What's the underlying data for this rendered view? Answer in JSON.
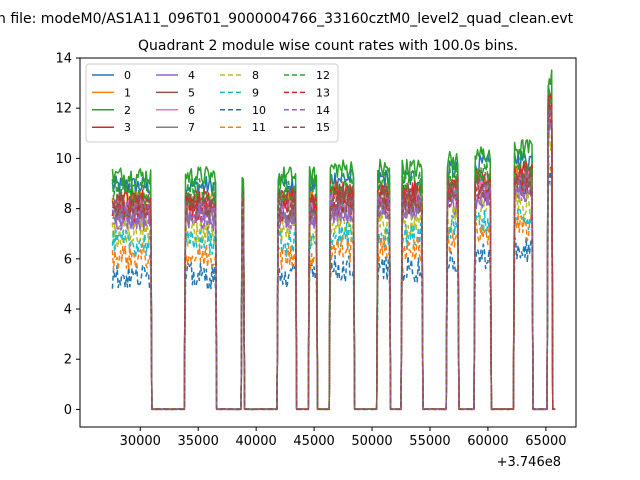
{
  "figure": {
    "suptitle": "n file: modeM0/AS1A11_096T01_9000004766_33160cztM0_level2_quad_clean.evt",
    "offset_label": "+3.746e8"
  },
  "chart_data": {
    "type": "line",
    "title": "Quadrant 2 module wise count rates with 100.0s bins.",
    "xlabel": "",
    "ylabel": "",
    "xlim": [
      24800,
      67600
    ],
    "ylim": [
      -0.7,
      14
    ],
    "x_offset": 374600000,
    "grid": false,
    "legend_position": "upper-left",
    "x_ticks": [
      30000,
      35000,
      40000,
      45000,
      50000,
      55000,
      60000,
      65000
    ],
    "x_tick_labels": [
      "30000",
      "35000",
      "40000",
      "45000",
      "50000",
      "55000",
      "60000",
      "65000"
    ],
    "y_ticks": [
      0,
      2,
      4,
      6,
      8,
      10,
      12,
      14
    ],
    "y_tick_labels": [
      "0",
      "2",
      "4",
      "6",
      "8",
      "10",
      "12",
      "14"
    ],
    "on_intervals": [
      [
        27600,
        30900
      ],
      [
        33900,
        36500
      ],
      [
        38800,
        38900
      ],
      [
        41900,
        43400
      ],
      [
        44600,
        45200
      ],
      [
        46400,
        48400
      ],
      [
        50500,
        51500
      ],
      [
        52600,
        54300
      ],
      [
        56500,
        57400
      ],
      [
        58900,
        60200
      ],
      [
        62300,
        63800
      ],
      [
        65200,
        65500
      ]
    ],
    "series": [
      {
        "name": "0",
        "color": "#1f77b4",
        "dash": "solid",
        "level": 8.9
      },
      {
        "name": "1",
        "color": "#ff7f0e",
        "dash": "solid",
        "level": 8.3
      },
      {
        "name": "2",
        "color": "#2ca02c",
        "dash": "solid",
        "level": 9.3
      },
      {
        "name": "3",
        "color": "#d62728",
        "dash": "solid",
        "level": 8.4
      },
      {
        "name": "4",
        "color": "#9467bd",
        "dash": "solid",
        "level": 7.5
      },
      {
        "name": "5",
        "color": "#8c564b",
        "dash": "solid",
        "level": 8.2
      },
      {
        "name": "6",
        "color": "#e377c2",
        "dash": "solid",
        "level": 8.0
      },
      {
        "name": "7",
        "color": "#7f7f7f",
        "dash": "solid",
        "level": 7.8
      },
      {
        "name": "8",
        "color": "#bcbd22",
        "dash": "dashed",
        "level": 7.0
      },
      {
        "name": "9",
        "color": "#17becf",
        "dash": "dashed",
        "level": 6.6
      },
      {
        "name": "10",
        "color": "#1f77b4",
        "dash": "dashed",
        "level": 5.3
      },
      {
        "name": "11",
        "color": "#ff7f0e",
        "dash": "dashed",
        "level": 6.1
      },
      {
        "name": "12",
        "color": "#2ca02c",
        "dash": "dashed",
        "level": 8.7
      },
      {
        "name": "13",
        "color": "#d62728",
        "dash": "dashed",
        "level": 8.0
      },
      {
        "name": "14",
        "color": "#9467bd",
        "dash": "dashed",
        "level": 7.7
      },
      {
        "name": "15",
        "color": "#8c564b",
        "dash": "dashed",
        "level": 8.1
      }
    ]
  }
}
